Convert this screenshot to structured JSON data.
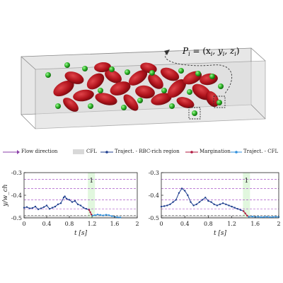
{
  "schematic": {
    "particle_label": "P",
    "particle_label_sub": "i",
    "particle_coords": "= (x",
    "coords_full": "= (x_i, y_i, z_i)"
  },
  "legend": [
    {
      "label": "Flow direction",
      "color": "#8b3fa8",
      "style": "arrow"
    },
    {
      "label": "CFL",
      "color": "#d8d8d8",
      "style": "box"
    },
    {
      "label": "Traject. - RBC-rich region",
      "color": "#1f3f8f",
      "style": "line-dot"
    },
    {
      "label": "Margination",
      "color": "#b0173f",
      "style": "line-dot"
    },
    {
      "label": "Traject. - CFL",
      "color": "#2f8fdc",
      "style": "line-dot"
    }
  ],
  "chart_data": [
    {
      "type": "line",
      "xlabel": "t [s]",
      "ylabel": "y/w_ch",
      "xlim": [
        0,
        2
      ],
      "ylim": [
        -0.5,
        -0.3
      ],
      "xticks": [
        "0",
        "0.4",
        "0.8",
        "1.2",
        "1.6",
        "2"
      ],
      "yticks": [
        "-0.3",
        "-0.4",
        "-0.5"
      ],
      "annotation": "1",
      "margination_time": 1.19,
      "series": [
        {
          "name": "Traject. - RBC-rich region",
          "color": "#1f3f8f",
          "x": [
            0.0,
            0.05,
            0.1,
            0.15,
            0.2,
            0.25,
            0.3,
            0.35,
            0.4,
            0.45,
            0.5,
            0.55,
            0.6,
            0.65,
            0.7,
            0.72,
            0.75,
            0.8,
            0.85,
            0.9,
            0.95,
            1.0,
            1.05,
            1.1,
            1.15
          ],
          "y": [
            -0.455,
            -0.452,
            -0.458,
            -0.456,
            -0.45,
            -0.462,
            -0.458,
            -0.452,
            -0.445,
            -0.46,
            -0.455,
            -0.45,
            -0.44,
            -0.435,
            -0.41,
            -0.405,
            -0.415,
            -0.42,
            -0.43,
            -0.425,
            -0.44,
            -0.445,
            -0.455,
            -0.46,
            -0.465
          ]
        },
        {
          "name": "Margination",
          "color": "#b0173f",
          "x": [
            1.15,
            1.17,
            1.19,
            1.21
          ],
          "y": [
            -0.465,
            -0.475,
            -0.485,
            -0.49
          ]
        },
        {
          "name": "Traject. - CFL",
          "color": "#2f8fdc",
          "x": [
            1.21,
            1.25,
            1.3,
            1.35,
            1.4,
            1.45,
            1.5,
            1.55,
            1.6,
            1.65,
            1.7
          ],
          "y": [
            -0.49,
            -0.488,
            -0.485,
            -0.487,
            -0.489,
            -0.486,
            -0.488,
            -0.492,
            -0.495,
            -0.497,
            -0.498
          ]
        }
      ]
    },
    {
      "type": "line",
      "xlabel": "t [s]",
      "ylabel": "",
      "xlim": [
        0,
        2
      ],
      "ylim": [
        -0.5,
        -0.3
      ],
      "xticks": [
        "0",
        "0.4",
        "0.8",
        "1.2",
        "1.6",
        "2"
      ],
      "yticks": [
        "-0.3",
        "-0.4",
        "-0.5"
      ],
      "annotation": "1",
      "margination_time": 1.45,
      "series": [
        {
          "name": "Traject. - RBC-rich region",
          "color": "#1f3f8f",
          "x": [
            0.0,
            0.05,
            0.1,
            0.15,
            0.2,
            0.25,
            0.3,
            0.35,
            0.4,
            0.45,
            0.5,
            0.55,
            0.6,
            0.65,
            0.7,
            0.75,
            0.8,
            0.85,
            0.9,
            0.95,
            1.0,
            1.05,
            1.1,
            1.15,
            1.2,
            1.25,
            1.3,
            1.35,
            1.4
          ],
          "y": [
            -0.45,
            -0.448,
            -0.445,
            -0.44,
            -0.43,
            -0.42,
            -0.39,
            -0.37,
            -0.38,
            -0.4,
            -0.43,
            -0.445,
            -0.44,
            -0.43,
            -0.42,
            -0.41,
            -0.425,
            -0.43,
            -0.44,
            -0.445,
            -0.44,
            -0.435,
            -0.44,
            -0.445,
            -0.45,
            -0.455,
            -0.46,
            -0.465,
            -0.47
          ]
        },
        {
          "name": "Margination",
          "color": "#b0173f",
          "x": [
            1.4,
            1.43,
            1.46,
            1.49
          ],
          "y": [
            -0.47,
            -0.48,
            -0.49,
            -0.495
          ]
        },
        {
          "name": "Traject. - CFL",
          "color": "#2f8fdc",
          "x": [
            1.49,
            1.55,
            1.6,
            1.65,
            1.7,
            1.75,
            1.8,
            1.85,
            1.9,
            1.95,
            2.0
          ],
          "y": [
            -0.495,
            -0.494,
            -0.496,
            -0.495,
            -0.497,
            -0.496,
            -0.495,
            -0.497,
            -0.496,
            -0.495,
            -0.496
          ]
        }
      ]
    }
  ]
}
